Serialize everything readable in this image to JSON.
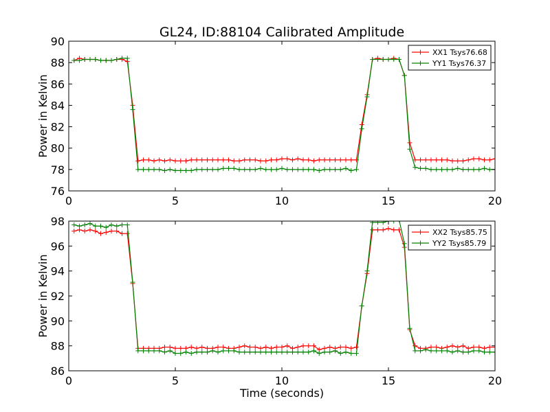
{
  "figure": {
    "title": "GL24, ID:88104 Calibrated Amplitude",
    "xlabel": "Time (seconds)"
  },
  "chart_data": [
    {
      "type": "line",
      "ylabel": "Power in Kelvin",
      "xlim": [
        0,
        20
      ],
      "ylim": [
        76,
        90
      ],
      "xticks": [
        0,
        5,
        10,
        15,
        20
      ],
      "yticks": [
        76,
        78,
        80,
        82,
        84,
        86,
        88,
        90
      ],
      "legend": "top-right",
      "grid": false,
      "x": [
        0.25,
        0.5,
        0.75,
        1.0,
        1.25,
        1.5,
        1.75,
        2.0,
        2.25,
        2.5,
        2.75,
        3.0,
        3.25,
        3.5,
        3.75,
        4.0,
        4.25,
        4.5,
        4.75,
        5.0,
        5.25,
        5.5,
        5.75,
        6.0,
        6.25,
        6.5,
        6.75,
        7.0,
        7.25,
        7.5,
        7.75,
        8.0,
        8.25,
        8.5,
        8.75,
        9.0,
        9.25,
        9.5,
        9.75,
        10.0,
        10.25,
        10.5,
        10.75,
        11.0,
        11.25,
        11.5,
        11.75,
        12.0,
        12.25,
        12.5,
        12.75,
        13.0,
        13.25,
        13.5,
        13.75,
        14.0,
        14.25,
        14.5,
        14.75,
        15.0,
        15.25,
        15.5,
        15.75,
        16.0,
        16.25,
        16.5,
        16.75,
        17.0,
        17.25,
        17.5,
        17.75,
        18.0,
        18.25,
        18.5,
        18.75,
        19.0,
        19.25,
        19.5,
        19.75,
        20.0
      ],
      "series": [
        {
          "name": "XX1 Tsys76.68",
          "color": "#ff0000",
          "values": [
            88.2,
            88.4,
            88.3,
            88.3,
            88.3,
            88.2,
            88.2,
            88.2,
            88.3,
            88.3,
            88.1,
            84.0,
            78.8,
            78.9,
            78.9,
            78.8,
            78.9,
            78.8,
            78.9,
            78.8,
            78.8,
            78.8,
            78.9,
            78.9,
            78.9,
            78.9,
            78.9,
            78.9,
            78.9,
            78.9,
            78.8,
            78.8,
            78.9,
            78.9,
            78.9,
            78.8,
            78.8,
            78.9,
            78.9,
            79.0,
            79.0,
            78.9,
            79.0,
            78.9,
            78.9,
            78.8,
            78.9,
            78.9,
            78.9,
            78.9,
            78.9,
            78.9,
            78.9,
            78.9,
            82.2,
            85.0,
            88.3,
            88.4,
            88.3,
            88.3,
            88.4,
            88.3,
            86.8,
            80.5,
            78.9,
            78.9,
            78.9,
            78.9,
            78.9,
            78.9,
            78.9,
            78.8,
            78.8,
            78.8,
            78.9,
            79.0,
            79.0,
            78.9,
            78.9,
            79.0
          ]
        },
        {
          "name": "YY1 Tsys76.37",
          "color": "#008000",
          "values": [
            88.2,
            88.2,
            88.3,
            88.3,
            88.3,
            88.2,
            88.2,
            88.2,
            88.3,
            88.4,
            88.4,
            83.6,
            78.0,
            78.0,
            78.0,
            78.0,
            78.0,
            77.9,
            78.0,
            77.9,
            77.9,
            77.9,
            77.9,
            78.0,
            78.0,
            78.0,
            78.0,
            78.0,
            78.1,
            78.1,
            78.1,
            78.0,
            78.0,
            78.0,
            78.0,
            78.1,
            78.0,
            78.0,
            78.0,
            78.1,
            78.0,
            78.0,
            78.0,
            78.0,
            78.0,
            78.0,
            77.9,
            78.0,
            78.0,
            78.0,
            78.0,
            78.1,
            77.9,
            78.0,
            81.8,
            84.8,
            88.3,
            88.3,
            88.3,
            88.3,
            88.3,
            88.3,
            86.8,
            79.9,
            78.2,
            78.1,
            78.1,
            78.0,
            78.0,
            78.0,
            78.0,
            78.0,
            78.1,
            78.0,
            78.0,
            78.0,
            78.0,
            78.1,
            78.0,
            78.0
          ]
        }
      ]
    },
    {
      "type": "line",
      "ylabel": "Power in Kelvin",
      "xlim": [
        0,
        20
      ],
      "ylim": [
        86,
        98
      ],
      "xticks": [
        0,
        5,
        10,
        15,
        20
      ],
      "yticks": [
        86,
        88,
        90,
        92,
        94,
        96,
        98
      ],
      "legend": "top-right",
      "grid": false,
      "x": [
        0.25,
        0.5,
        0.75,
        1.0,
        1.25,
        1.5,
        1.75,
        2.0,
        2.25,
        2.5,
        2.75,
        3.0,
        3.25,
        3.5,
        3.75,
        4.0,
        4.25,
        4.5,
        4.75,
        5.0,
        5.25,
        5.5,
        5.75,
        6.0,
        6.25,
        6.5,
        6.75,
        7.0,
        7.25,
        7.5,
        7.75,
        8.0,
        8.25,
        8.5,
        8.75,
        9.0,
        9.25,
        9.5,
        9.75,
        10.0,
        10.25,
        10.5,
        10.75,
        11.0,
        11.25,
        11.5,
        11.75,
        12.0,
        12.25,
        12.5,
        12.75,
        13.0,
        13.25,
        13.5,
        13.75,
        14.0,
        14.25,
        14.5,
        14.75,
        15.0,
        15.25,
        15.5,
        15.75,
        16.0,
        16.25,
        16.5,
        16.75,
        17.0,
        17.25,
        17.5,
        17.75,
        18.0,
        18.25,
        18.5,
        18.75,
        19.0,
        19.25,
        19.5,
        19.75,
        20.0
      ],
      "series": [
        {
          "name": "XX2 Tsys85.75",
          "color": "#ff0000",
          "values": [
            97.2,
            97.3,
            97.2,
            97.3,
            97.2,
            97.0,
            97.1,
            97.2,
            97.2,
            97.0,
            97.0,
            93.0,
            87.8,
            87.8,
            87.8,
            87.8,
            87.8,
            87.9,
            87.9,
            87.8,
            87.8,
            87.8,
            87.9,
            87.8,
            87.9,
            87.8,
            87.8,
            87.9,
            87.9,
            87.8,
            87.8,
            87.9,
            88.0,
            87.9,
            87.9,
            87.8,
            87.9,
            87.8,
            87.9,
            87.9,
            88.0,
            87.8,
            87.9,
            88.0,
            88.0,
            88.0,
            87.7,
            87.8,
            87.9,
            87.8,
            87.9,
            87.9,
            87.8,
            87.9,
            91.2,
            93.8,
            97.3,
            97.3,
            97.3,
            97.4,
            97.3,
            97.3,
            95.9,
            89.3,
            88.0,
            87.8,
            87.8,
            87.9,
            87.9,
            87.8,
            87.9,
            88.0,
            87.9,
            88.0,
            87.8,
            87.9,
            87.9,
            87.8,
            87.9,
            87.9
          ]
        },
        {
          "name": "YY2 Tsys85.79",
          "color": "#008000",
          "values": [
            97.7,
            97.6,
            97.7,
            97.8,
            97.6,
            97.6,
            97.5,
            97.7,
            97.6,
            97.7,
            97.7,
            93.1,
            87.6,
            87.6,
            87.6,
            87.6,
            87.6,
            87.5,
            87.6,
            87.4,
            87.4,
            87.5,
            87.4,
            87.5,
            87.5,
            87.5,
            87.6,
            87.5,
            87.6,
            87.6,
            87.6,
            87.5,
            87.5,
            87.5,
            87.5,
            87.5,
            87.5,
            87.5,
            87.5,
            87.5,
            87.5,
            87.5,
            87.5,
            87.5,
            87.5,
            87.6,
            87.4,
            87.5,
            87.5,
            87.6,
            87.4,
            87.5,
            87.4,
            87.4,
            91.2,
            94.0,
            97.9,
            97.9,
            97.9,
            98.0,
            98.0,
            98.1,
            96.2,
            89.4,
            87.6,
            87.6,
            87.7,
            87.6,
            87.6,
            87.6,
            87.6,
            87.5,
            87.6,
            87.5,
            87.5,
            87.6,
            87.6,
            87.5,
            87.5,
            87.5
          ]
        }
      ]
    }
  ]
}
